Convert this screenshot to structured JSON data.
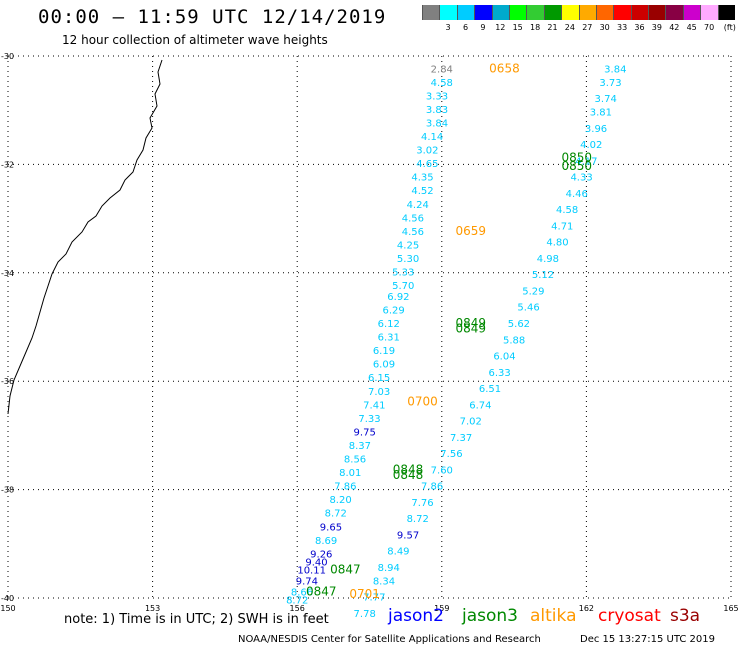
{
  "header": {
    "title": "00:00 – 11:59 UTC 12/14/2019",
    "subtitle": "12 hour collection of altimeter wave heights"
  },
  "legend": {
    "colors": [
      "#808080",
      "#00ffff",
      "#00ccff",
      "#0000ff",
      "#00aacc",
      "#00ff00",
      "#33cc33",
      "#009900",
      "#ffff00",
      "#ffaa00",
      "#ff6600",
      "#ff0000",
      "#cc0000",
      "#990000",
      "#880044",
      "#cc00cc",
      "#ffaaff",
      "#000000"
    ],
    "labels": [
      "3",
      "6",
      "9",
      "12",
      "15",
      "18",
      "21",
      "24",
      "27",
      "30",
      "33",
      "36",
      "39",
      "42",
      "45",
      "70"
    ],
    "unit": "(ft)"
  },
  "map": {
    "lon_ticks": [
      "150",
      "153",
      "156",
      "159",
      "162",
      "165"
    ],
    "lat_ticks": [
      "-30",
      "-32",
      "-34",
      "-36",
      "-38",
      "-40"
    ],
    "lon_range": [
      150,
      165
    ],
    "lat_range": [
      -30,
      -40
    ],
    "grid": "dotted"
  },
  "tracks": [
    {
      "name": "west-track",
      "points": [
        {
          "lon": 159.0,
          "lat": -30.3,
          "swh": "2.84",
          "color": "#808080"
        },
        {
          "lon": 159.0,
          "lat": -30.55,
          "swh": "4.58",
          "color": "#00ccff"
        },
        {
          "lon": 158.9,
          "lat": -30.8,
          "swh": "3.33",
          "color": "#00ccff"
        },
        {
          "lon": 158.9,
          "lat": -31.05,
          "swh": "3.83",
          "color": "#00ccff"
        },
        {
          "lon": 158.9,
          "lat": -31.3,
          "swh": "3.84",
          "color": "#00ccff"
        },
        {
          "lon": 158.8,
          "lat": -31.55,
          "swh": "4.14",
          "color": "#00ccff"
        },
        {
          "lon": 158.7,
          "lat": -31.8,
          "swh": "3.02",
          "color": "#00ccff"
        },
        {
          "lon": 158.7,
          "lat": -32.05,
          "swh": "4.65",
          "color": "#00ccff"
        },
        {
          "lon": 158.6,
          "lat": -32.3,
          "swh": "4.35",
          "color": "#00ccff"
        },
        {
          "lon": 158.6,
          "lat": -32.55,
          "swh": "4.52",
          "color": "#00ccff"
        },
        {
          "lon": 158.5,
          "lat": -32.8,
          "swh": "4.24",
          "color": "#00ccff"
        },
        {
          "lon": 158.4,
          "lat": -33.05,
          "swh": "4.56",
          "color": "#00ccff"
        },
        {
          "lon": 158.4,
          "lat": -33.3,
          "swh": "4.56",
          "color": "#00ccff"
        },
        {
          "lon": 158.3,
          "lat": -33.55,
          "swh": "4.25",
          "color": "#00ccff"
        },
        {
          "lon": 158.3,
          "lat": -33.8,
          "swh": "5.30",
          "color": "#00ccff"
        },
        {
          "lon": 158.2,
          "lat": -34.05,
          "swh": "5.33",
          "color": "#00ccff"
        },
        {
          "lon": 158.2,
          "lat": -34.3,
          "swh": "5.70",
          "color": "#00ccff"
        },
        {
          "lon": 158.1,
          "lat": -34.5,
          "swh": "6.92",
          "color": "#00ccff"
        },
        {
          "lon": 158.0,
          "lat": -34.75,
          "swh": "6.29",
          "color": "#00ccff"
        },
        {
          "lon": 157.9,
          "lat": -35.0,
          "swh": "6.12",
          "color": "#00ccff"
        },
        {
          "lon": 157.9,
          "lat": -35.25,
          "swh": "6.31",
          "color": "#00ccff"
        },
        {
          "lon": 157.8,
          "lat": -35.5,
          "swh": "6.19",
          "color": "#00ccff"
        },
        {
          "lon": 157.8,
          "lat": -35.75,
          "swh": "6.09",
          "color": "#00ccff"
        },
        {
          "lon": 157.7,
          "lat": -36.0,
          "swh": "6.15",
          "color": "#00ccff"
        },
        {
          "lon": 157.7,
          "lat": -36.25,
          "swh": "7.03",
          "color": "#00ccff"
        },
        {
          "lon": 157.6,
          "lat": -36.5,
          "swh": "7.41",
          "color": "#00ccff"
        },
        {
          "lon": 157.5,
          "lat": -36.75,
          "swh": "7.33",
          "color": "#00ccff"
        },
        {
          "lon": 157.4,
          "lat": -37.0,
          "swh": "9.75",
          "color": "#0000cc"
        },
        {
          "lon": 157.3,
          "lat": -37.25,
          "swh": "8.37",
          "color": "#00ccff"
        },
        {
          "lon": 157.2,
          "lat": -37.5,
          "swh": "8.56",
          "color": "#00ccff"
        },
        {
          "lon": 157.1,
          "lat": -37.75,
          "swh": "8.01",
          "color": "#00ccff"
        },
        {
          "lon": 157.0,
          "lat": -38.0,
          "swh": "7.86",
          "color": "#00ccff"
        },
        {
          "lon": 156.9,
          "lat": -38.25,
          "swh": "8.20",
          "color": "#00ccff"
        },
        {
          "lon": 156.8,
          "lat": -38.5,
          "swh": "8.72",
          "color": "#00ccff"
        },
        {
          "lon": 156.7,
          "lat": -38.75,
          "swh": "9.65",
          "color": "#0000cc"
        },
        {
          "lon": 156.6,
          "lat": -39.0,
          "swh": "8.69",
          "color": "#00ccff"
        },
        {
          "lon": 156.5,
          "lat": -39.25,
          "swh": "9.26",
          "color": "#0000cc"
        },
        {
          "lon": 156.4,
          "lat": -39.4,
          "swh": "9.40",
          "color": "#0000cc"
        },
        {
          "lon": 156.3,
          "lat": -39.55,
          "swh": "10.11",
          "color": "#0000cc"
        },
        {
          "lon": 156.2,
          "lat": -39.75,
          "swh": "9.74",
          "color": "#0000cc"
        },
        {
          "lon": 156.1,
          "lat": -39.95,
          "swh": "8.66",
          "color": "#00ccff"
        },
        {
          "lon": 156.0,
          "lat": -40.1,
          "swh": "8.72",
          "color": "#00ccff"
        }
      ]
    },
    {
      "name": "east-track",
      "points": [
        {
          "lon": 162.6,
          "lat": -30.3,
          "swh": "3.84",
          "color": "#00ccff"
        },
        {
          "lon": 162.5,
          "lat": -30.55,
          "swh": "3.73",
          "color": "#00ccff"
        },
        {
          "lon": 162.4,
          "lat": -30.85,
          "swh": "3.74",
          "color": "#00ccff"
        },
        {
          "lon": 162.3,
          "lat": -31.1,
          "swh": "3.81",
          "color": "#00ccff"
        },
        {
          "lon": 162.2,
          "lat": -31.4,
          "swh": "3.96",
          "color": "#00ccff"
        },
        {
          "lon": 162.1,
          "lat": -31.7,
          "swh": "4.02",
          "color": "#00ccff"
        },
        {
          "lon": 162.0,
          "lat": -32.0,
          "swh": "4.17",
          "color": "#00ccff"
        },
        {
          "lon": 161.9,
          "lat": -32.3,
          "swh": "4.33",
          "color": "#00ccff"
        },
        {
          "lon": 161.8,
          "lat": -32.6,
          "swh": "4.46",
          "color": "#00ccff"
        },
        {
          "lon": 161.6,
          "lat": -32.9,
          "swh": "4.58",
          "color": "#00ccff"
        },
        {
          "lon": 161.5,
          "lat": -33.2,
          "swh": "4.71",
          "color": "#00ccff"
        },
        {
          "lon": 161.4,
          "lat": -33.5,
          "swh": "4.80",
          "color": "#00ccff"
        },
        {
          "lon": 161.2,
          "lat": -33.8,
          "swh": "4.98",
          "color": "#00ccff"
        },
        {
          "lon": 161.1,
          "lat": -34.1,
          "swh": "5.12",
          "color": "#00ccff"
        },
        {
          "lon": 160.9,
          "lat": -34.4,
          "swh": "5.29",
          "color": "#00ccff"
        },
        {
          "lon": 160.8,
          "lat": -34.7,
          "swh": "5.46",
          "color": "#00ccff"
        },
        {
          "lon": 160.6,
          "lat": -35.0,
          "swh": "5.62",
          "color": "#00ccff"
        },
        {
          "lon": 160.5,
          "lat": -35.3,
          "swh": "5.88",
          "color": "#00ccff"
        },
        {
          "lon": 160.3,
          "lat": -35.6,
          "swh": "6.04",
          "color": "#00ccff"
        },
        {
          "lon": 160.2,
          "lat": -35.9,
          "swh": "6.33",
          "color": "#00ccff"
        },
        {
          "lon": 160.0,
          "lat": -36.2,
          "swh": "6.51",
          "color": "#00ccff"
        },
        {
          "lon": 159.8,
          "lat": -36.5,
          "swh": "6.74",
          "color": "#00ccff"
        },
        {
          "lon": 159.6,
          "lat": -36.8,
          "swh": "7.02",
          "color": "#00ccff"
        },
        {
          "lon": 159.4,
          "lat": -37.1,
          "swh": "7.37",
          "color": "#00ccff"
        },
        {
          "lon": 159.2,
          "lat": -37.4,
          "swh": "7.56",
          "color": "#00ccff"
        },
        {
          "lon": 159.0,
          "lat": -37.7,
          "swh": "7.60",
          "color": "#00ccff"
        },
        {
          "lon": 158.8,
          "lat": -38.0,
          "swh": "7.86",
          "color": "#00ccff"
        },
        {
          "lon": 158.6,
          "lat": -38.3,
          "swh": "7.76",
          "color": "#00ccff"
        },
        {
          "lon": 158.5,
          "lat": -38.6,
          "swh": "8.72",
          "color": "#00ccff"
        },
        {
          "lon": 158.3,
          "lat": -38.9,
          "swh": "9.57",
          "color": "#0000cc"
        },
        {
          "lon": 158.1,
          "lat": -39.2,
          "swh": "8.49",
          "color": "#00ccff"
        },
        {
          "lon": 157.9,
          "lat": -39.5,
          "swh": "8.94",
          "color": "#00ccff"
        },
        {
          "lon": 157.8,
          "lat": -39.75,
          "swh": "8.34",
          "color": "#00ccff"
        },
        {
          "lon": 157.6,
          "lat": -40.05,
          "swh": "7.77",
          "color": "#00ccff"
        },
        {
          "lon": 157.4,
          "lat": -40.35,
          "swh": "7.78",
          "color": "#00ccff"
        }
      ]
    }
  ],
  "time_labels": [
    {
      "lon": 160.3,
      "lat": -30.3,
      "text": "0658",
      "color": "#ff9900"
    },
    {
      "lon": 161.8,
      "lat": -31.95,
      "text": "0850",
      "color": "#008800"
    },
    {
      "lon": 161.8,
      "lat": -32.1,
      "text": "0850",
      "color": "#008800"
    },
    {
      "lon": 159.6,
      "lat": -33.3,
      "text": "0659",
      "color": "#ff9900"
    },
    {
      "lon": 159.6,
      "lat": -35.0,
      "text": "0849",
      "color": "#008800"
    },
    {
      "lon": 159.6,
      "lat": -35.1,
      "text": "0849",
      "color": "#008800"
    },
    {
      "lon": 158.6,
      "lat": -36.45,
      "text": "0700",
      "color": "#ff9900"
    },
    {
      "lon": 158.3,
      "lat": -37.7,
      "text": "0848",
      "color": "#008800"
    },
    {
      "lon": 158.3,
      "lat": -37.8,
      "text": "0848",
      "color": "#008800"
    },
    {
      "lon": 157.0,
      "lat": -39.55,
      "text": "0847",
      "color": "#008800"
    },
    {
      "lon": 156.5,
      "lat": -39.95,
      "text": "0847",
      "color": "#008800"
    },
    {
      "lon": 157.4,
      "lat": -40.0,
      "text": "0701",
      "color": "#ff9900"
    }
  ],
  "footer": {
    "note": "note: 1) Time is in UTC; 2) SWH is in feet",
    "satellites": [
      {
        "name": "jason2",
        "color": "#0000ff"
      },
      {
        "name": "jason3",
        "color": "#008800"
      },
      {
        "name": "altika",
        "color": "#ff9900"
      },
      {
        "name": "cryosat",
        "color": "#ff0000"
      },
      {
        "name": "s3a",
        "color": "#990000"
      }
    ],
    "credit": "NOAA/NESDIS Center for Satellite Applications and Research",
    "timestamp": "Dec 15 13:27:15 UTC 2019"
  }
}
